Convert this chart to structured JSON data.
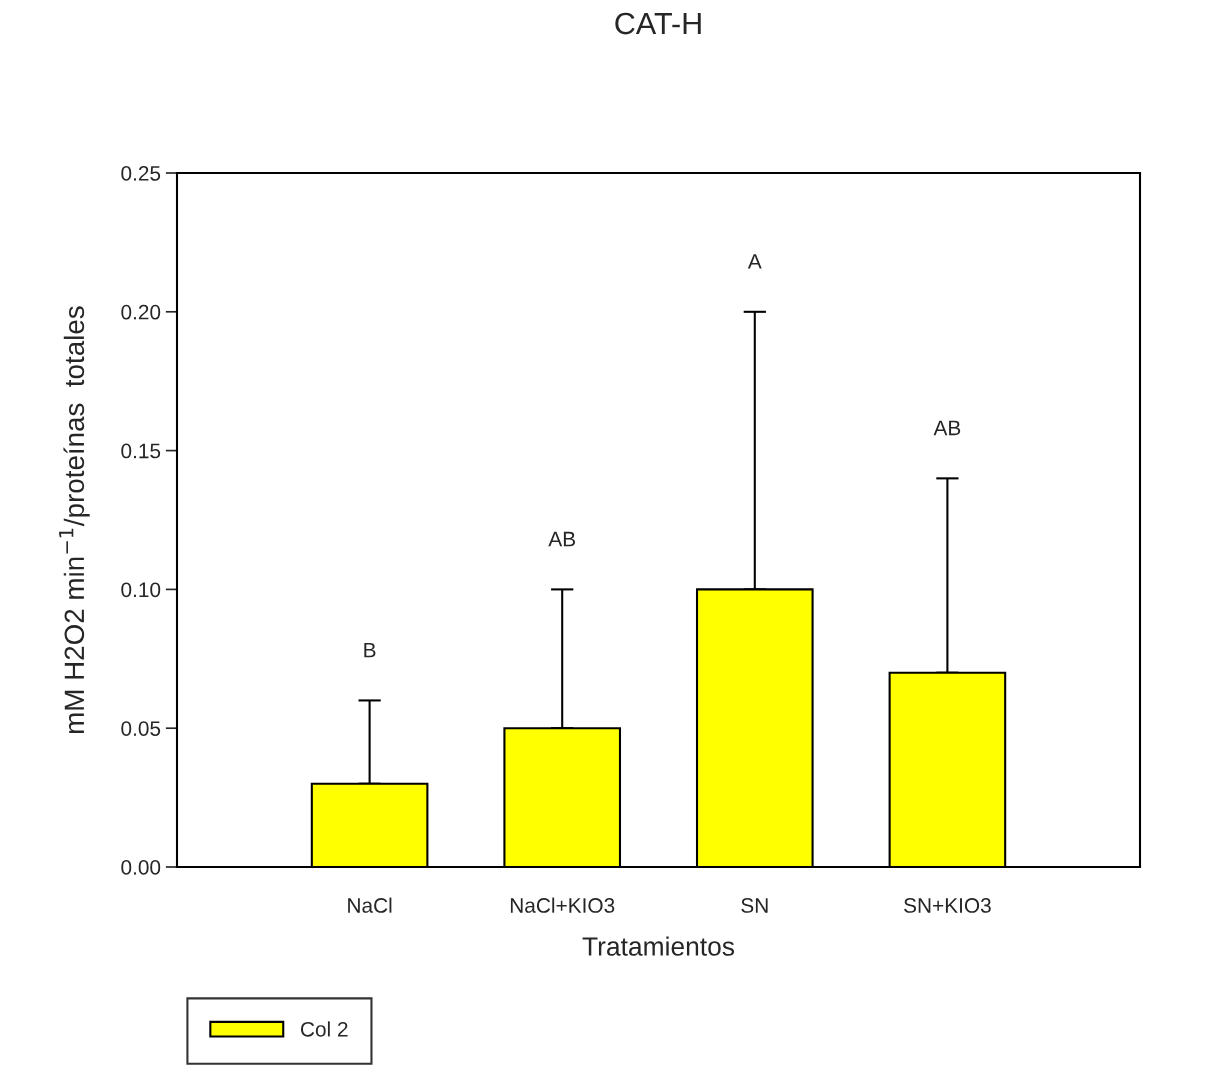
{
  "chart_data": {
    "type": "bar",
    "title": "CAT-H",
    "xlabel": "Tratamientos",
    "ylabel": "mM H2O2 min$^{−1}$/proteínas  totales",
    "categories": [
      "NaCl",
      "NaCl+KIO3",
      "SN",
      "SN+KIO3"
    ],
    "series": [
      {
        "name": "Col 2",
        "color": "#ffff00",
        "values": [
          0.03,
          0.05,
          0.1,
          0.07
        ],
        "errors": [
          [
            0.03,
            0.06
          ],
          [
            0.05,
            0.1
          ],
          [
            0.1,
            0.2
          ],
          [
            0.07,
            0.14
          ]
        ]
      }
    ],
    "ylim": [
      0,
      0.25
    ],
    "yticks": [
      {
        "value": 0,
        "label": "0.00"
      },
      {
        "value": 0.05,
        "label": "0.05"
      },
      {
        "value": 0.1,
        "label": "0.10"
      },
      {
        "value": 0.15,
        "label": "0.15"
      },
      {
        "value": 0.2,
        "label": "0.20"
      },
      {
        "value": 0.25,
        "label": "0.25"
      }
    ],
    "annotations": [
      "B",
      "AB",
      "A",
      "AB"
    ],
    "legend": "bottom left",
    "grid": false
  }
}
